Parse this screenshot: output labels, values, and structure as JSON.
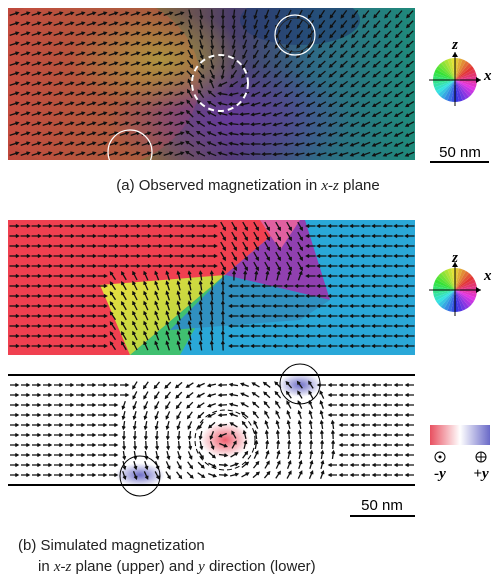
{
  "panel_a": {
    "axes": {
      "z": "z",
      "x": "x"
    },
    "scale_bar": "50 nm",
    "caption": [
      "(a) Observed magnetization in ",
      "x-z",
      " plane"
    ]
  },
  "panel_b": {
    "axes": {
      "z": "z",
      "x": "x"
    },
    "scale_bar": "50 nm",
    "legend": {
      "minus": "-y",
      "plus": "+y"
    },
    "caption_line1": "(b) Simulated magnetization",
    "caption_line2": [
      "in ",
      "x-z",
      " plane (upper) and ",
      "y",
      " direction (lower)"
    ]
  }
}
